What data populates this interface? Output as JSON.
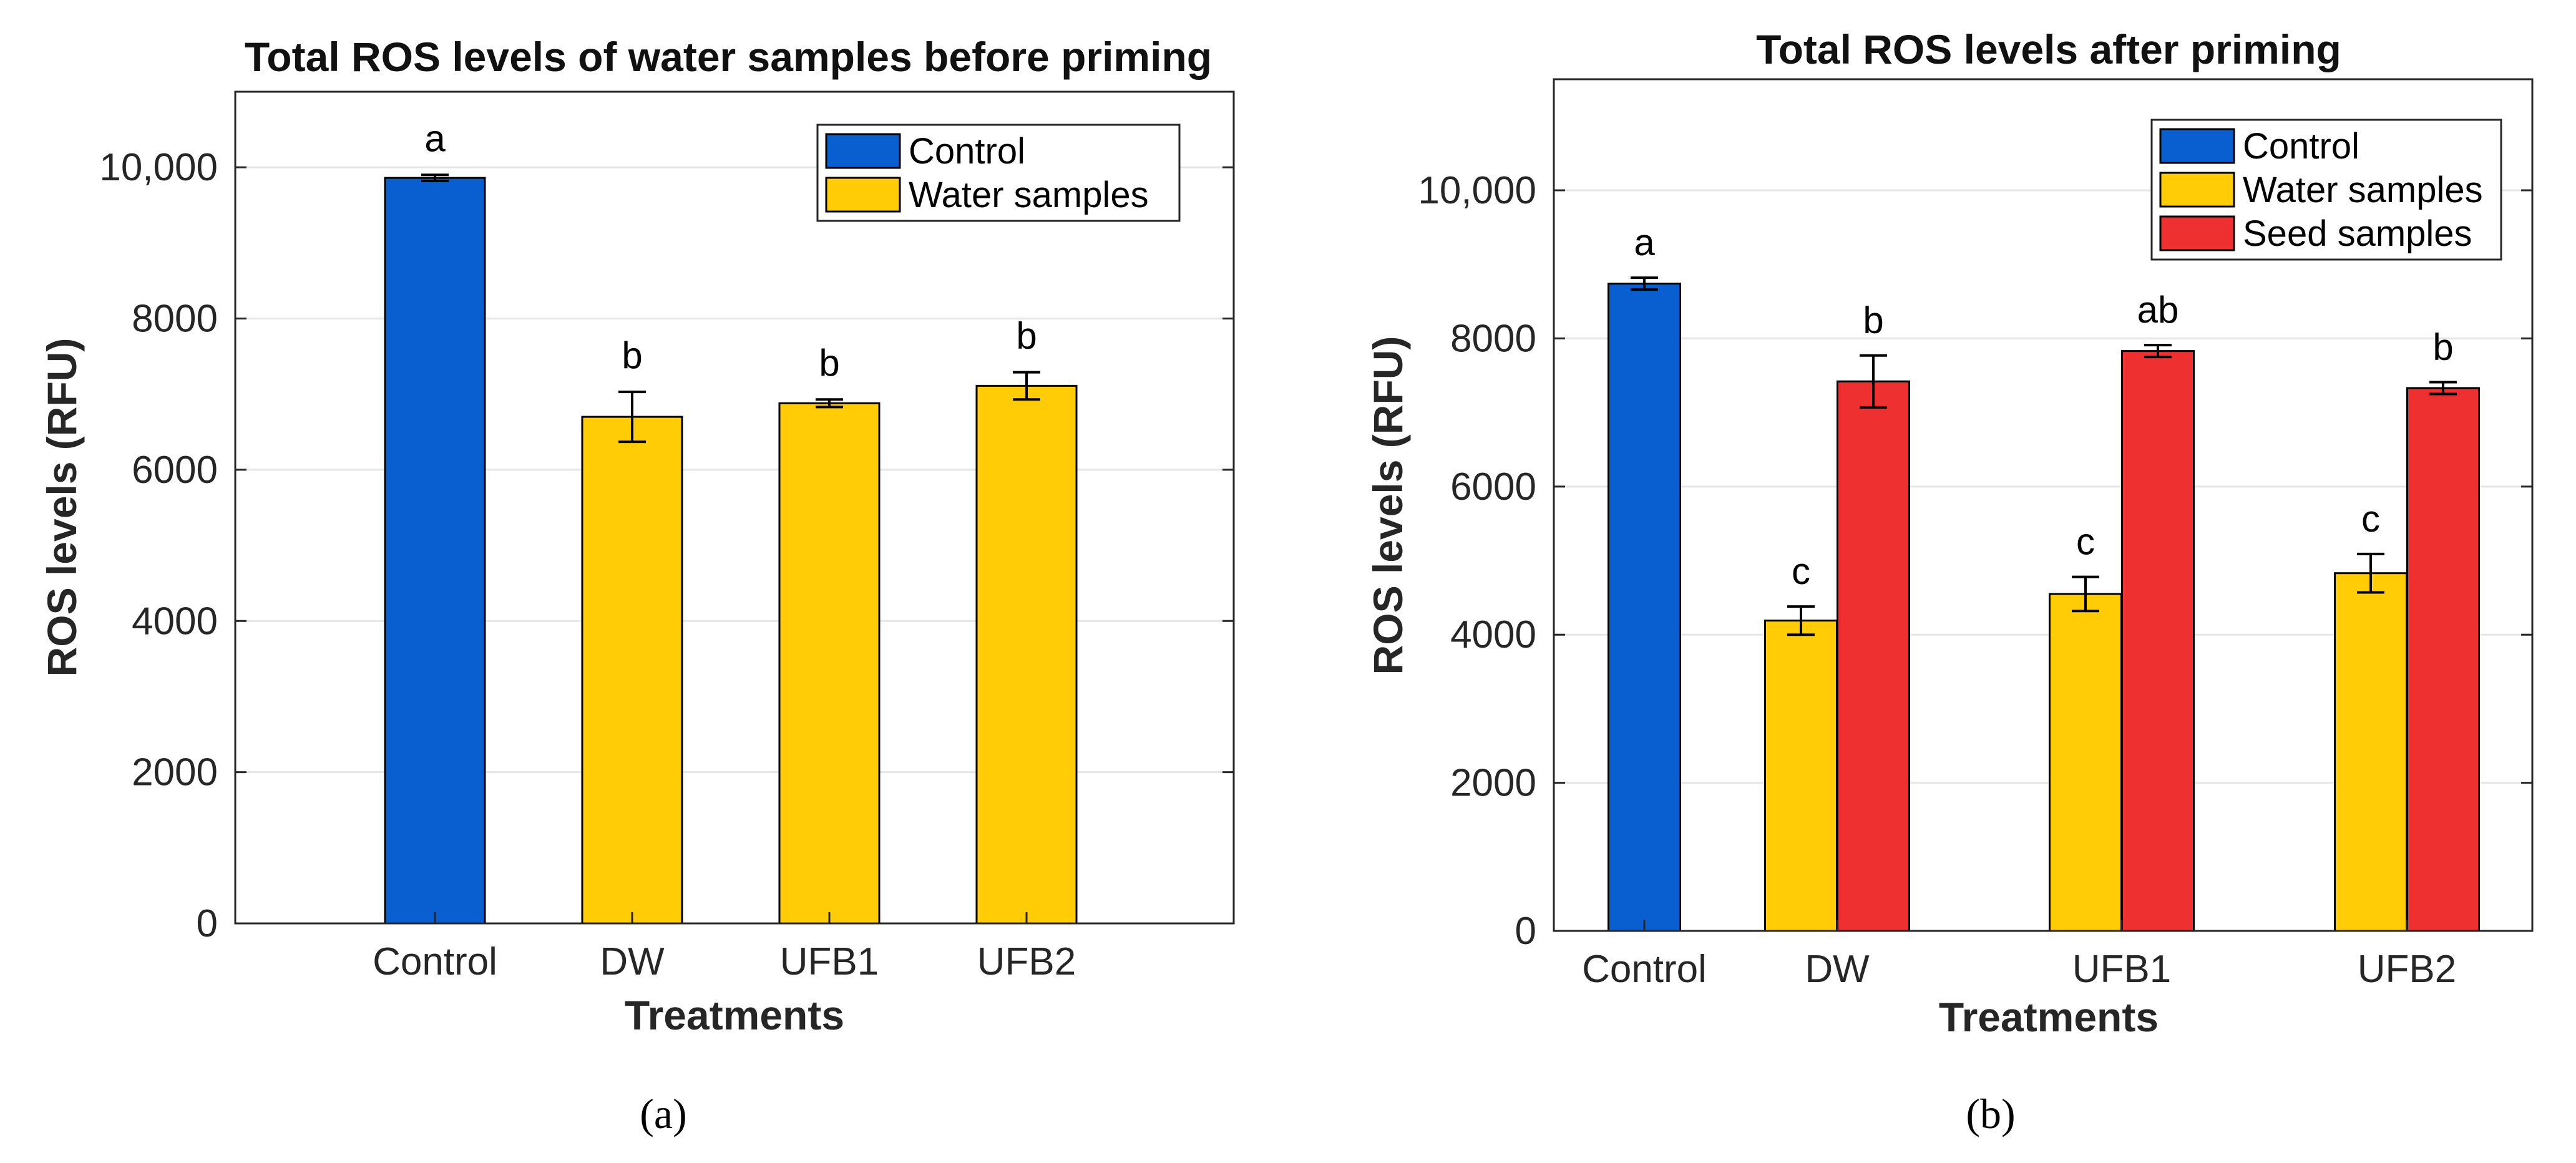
{
  "chart_data": [
    {
      "type": "bar",
      "title": "Total ROS levels of water samples before priming",
      "xlabel": "Treatments",
      "ylabel": "ROS levels (RFU)",
      "categories": [
        "Control",
        "DW",
        "UFB1",
        "UFB2"
      ],
      "ylim": [
        0,
        11000
      ],
      "yticks": [
        0,
        2000,
        4000,
        6000,
        8000,
        10000
      ],
      "ytick_labels": [
        "0",
        "2000",
        "4000",
        "6000",
        "8000",
        "10,000"
      ],
      "grid": true,
      "legend_position": "top-right",
      "caption": "(a)",
      "series": [
        {
          "name": "Control",
          "color": "#0a5fd0",
          "values": [
            9860,
            null,
            null,
            null
          ],
          "errors": [
            40,
            null,
            null,
            null
          ],
          "labels": [
            "a",
            null,
            null,
            null
          ]
        },
        {
          "name": "Water samples",
          "color": "#ffcc05",
          "values": [
            null,
            6700,
            6880,
            7110
          ],
          "errors": [
            null,
            330,
            50,
            180
          ],
          "labels": [
            null,
            "b",
            "b",
            "b"
          ]
        }
      ]
    },
    {
      "type": "bar",
      "title": "Total ROS levels after priming",
      "xlabel": "Treatments",
      "ylabel": "ROS levels (RFU)",
      "categories": [
        "Control",
        "DW",
        "UFB1",
        "UFB2"
      ],
      "ylim": [
        0,
        11500
      ],
      "yticks": [
        0,
        2000,
        4000,
        6000,
        8000,
        10000
      ],
      "ytick_labels": [
        "0",
        "2000",
        "4000",
        "6000",
        "8000",
        "10,000"
      ],
      "grid": true,
      "legend_position": "top-right",
      "caption": "(b)",
      "series": [
        {
          "name": "Control",
          "color": "#0a5fd0",
          "values": [
            8740,
            null,
            null,
            null
          ],
          "errors": [
            80,
            null,
            null,
            null
          ],
          "labels": [
            "a",
            null,
            null,
            null
          ]
        },
        {
          "name": "Water samples",
          "color": "#ffcc05",
          "values": [
            null,
            4190,
            4550,
            4830
          ],
          "errors": [
            null,
            190,
            230,
            260
          ],
          "labels": [
            null,
            "c",
            "c",
            "c"
          ]
        },
        {
          "name": "Seed samples",
          "color": "#ee3030",
          "values": [
            null,
            7420,
            7830,
            7330
          ],
          "errors": [
            null,
            350,
            80,
            80
          ],
          "labels": [
            null,
            "b",
            "ab",
            "b"
          ]
        }
      ]
    }
  ]
}
